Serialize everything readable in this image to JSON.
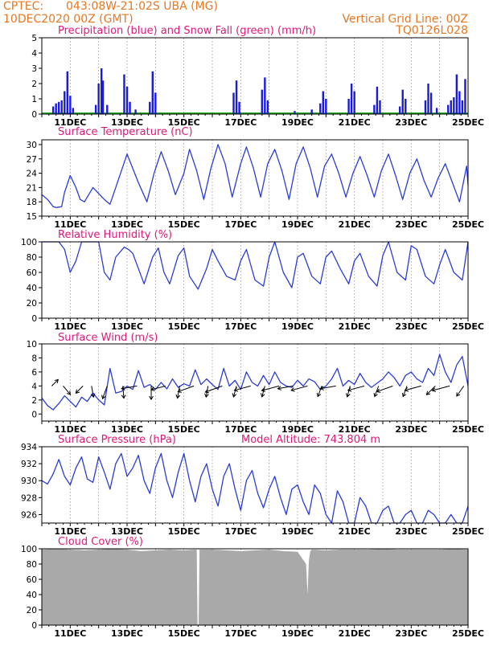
{
  "header": {
    "source": "CPTEC:",
    "location": "043:08W-21:02S  UBA (MG)",
    "datetime": "10DEC2020 00Z (GMT)",
    "grid_note": "Vertical Grid Line: 00Z",
    "model_code": "TQ0126L028"
  },
  "x_ticks": [
    "11DEC",
    "13DEC",
    "15DEC",
    "17DEC",
    "19DEC",
    "21DEC",
    "23DEC",
    "25DEC"
  ],
  "colors": {
    "precip": "#1a1adb",
    "snow": "#22aa22",
    "line": "#2b3cd6",
    "cloud": "#a9a9a9",
    "title": "#e0187a",
    "header": "#e87722"
  },
  "chart_data": [
    {
      "type": "bar",
      "title": "Precipitation (blue) and Snow Fall (green) (mm/h)",
      "ylim": [
        0,
        5
      ],
      "yticks": [
        "0",
        "1",
        "2",
        "3",
        "4",
        "5"
      ],
      "xlim_days": [
        10,
        25
      ],
      "series": [
        {
          "values": [
            [
              10.4,
              0.5
            ],
            [
              10.5,
              0.7
            ],
            [
              10.6,
              0.8
            ],
            [
              10.7,
              0.9
            ],
            [
              10.8,
              1.5
            ],
            [
              10.9,
              2.8
            ],
            [
              11.0,
              1.2
            ],
            [
              11.1,
              0.4
            ],
            [
              11.9,
              0.6
            ],
            [
              12.0,
              2.0
            ],
            [
              12.1,
              3.0
            ],
            [
              12.15,
              2.2
            ],
            [
              12.3,
              0.6
            ],
            [
              12.9,
              2.6
            ],
            [
              13.0,
              1.8
            ],
            [
              13.1,
              0.8
            ],
            [
              13.3,
              0.3
            ],
            [
              13.8,
              0.8
            ],
            [
              13.9,
              2.8
            ],
            [
              14.0,
              1.4
            ],
            [
              16.75,
              1.4
            ],
            [
              16.85,
              2.2
            ],
            [
              16.95,
              0.8
            ],
            [
              17.75,
              1.6
            ],
            [
              17.85,
              2.4
            ],
            [
              17.95,
              0.9
            ],
            [
              18.9,
              0.2
            ],
            [
              19.5,
              0.3
            ],
            [
              19.8,
              0.7
            ],
            [
              19.9,
              1.5
            ],
            [
              20.0,
              1.0
            ],
            [
              20.8,
              1.0
            ],
            [
              20.9,
              2.0
            ],
            [
              21.0,
              1.5
            ],
            [
              21.7,
              0.6
            ],
            [
              21.8,
              1.8
            ],
            [
              21.9,
              0.9
            ],
            [
              22.6,
              0.5
            ],
            [
              22.7,
              1.6
            ],
            [
              22.8,
              1.0
            ],
            [
              23.5,
              0.9
            ],
            [
              23.6,
              2.0
            ],
            [
              23.7,
              1.4
            ],
            [
              23.9,
              0.4
            ],
            [
              24.3,
              0.6
            ],
            [
              24.4,
              0.9
            ],
            [
              24.5,
              1.1
            ],
            [
              24.6,
              2.6
            ],
            [
              24.7,
              1.5
            ],
            [
              24.8,
              0.9
            ],
            [
              24.9,
              2.3
            ]
          ]
        }
      ]
    },
    {
      "type": "line",
      "title": "Surface Temperature (nC)",
      "ylim": [
        15,
        31
      ],
      "yticks": [
        "15",
        "18",
        "21",
        "24",
        "27",
        "30"
      ],
      "x": [
        10.0,
        10.2,
        10.4,
        10.5,
        10.7,
        10.8,
        11.0,
        11.2,
        11.35,
        11.5,
        11.8,
        12.2,
        12.4,
        12.6,
        13.0,
        13.2,
        13.4,
        13.7,
        13.95,
        14.2,
        14.45,
        14.7,
        15.0,
        15.2,
        15.45,
        15.7,
        15.95,
        16.2,
        16.45,
        16.7,
        17.0,
        17.2,
        17.45,
        17.7,
        17.95,
        18.2,
        18.45,
        18.7,
        18.95,
        19.2,
        19.45,
        19.7,
        19.95,
        20.2,
        20.45,
        20.7,
        20.95,
        21.2,
        21.45,
        21.7,
        21.95,
        22.2,
        22.45,
        22.7,
        22.95,
        23.2,
        23.45,
        23.7,
        23.95,
        24.2,
        24.45,
        24.7,
        24.95,
        25.0
      ],
      "values": [
        19.5,
        18.5,
        17.0,
        16.8,
        17.0,
        20.0,
        23.5,
        21.0,
        18.5,
        18.0,
        21.0,
        18.5,
        17.5,
        21.0,
        28.0,
        25.0,
        22.0,
        18.0,
        24.0,
        28.5,
        24.5,
        19.5,
        24.0,
        29.0,
        24.5,
        18.5,
        25.0,
        30.0,
        26.0,
        19.0,
        26.0,
        29.5,
        25.0,
        19.0,
        26.0,
        29.0,
        24.5,
        18.5,
        26.0,
        29.5,
        25.0,
        19.0,
        25.5,
        28.0,
        24.0,
        19.0,
        24.0,
        27.5,
        23.5,
        19.0,
        24.5,
        28.0,
        23.5,
        18.5,
        24.0,
        27.0,
        22.5,
        19.0,
        23.0,
        26.0,
        22.0,
        18.0,
        25.5,
        21.5
      ]
    },
    {
      "type": "line",
      "title": "Relative Humidity (%)",
      "ylim": [
        0,
        100
      ],
      "yticks": [
        "0",
        "20",
        "40",
        "60",
        "80",
        "100"
      ],
      "x": [
        10.0,
        10.2,
        10.4,
        10.6,
        10.8,
        11.0,
        11.2,
        11.4,
        11.6,
        11.8,
        12.0,
        12.2,
        12.4,
        12.6,
        12.9,
        13.05,
        13.2,
        13.4,
        13.6,
        13.9,
        14.1,
        14.3,
        14.5,
        14.8,
        15.0,
        15.2,
        15.5,
        15.8,
        16.0,
        16.2,
        16.5,
        16.8,
        17.0,
        17.2,
        17.5,
        17.8,
        18.0,
        18.2,
        18.5,
        18.8,
        19.0,
        19.2,
        19.5,
        19.8,
        20.0,
        20.2,
        20.5,
        20.8,
        21.0,
        21.2,
        21.5,
        21.8,
        22.0,
        22.2,
        22.5,
        22.8,
        23.0,
        23.2,
        23.5,
        23.8,
        24.0,
        24.2,
        24.5,
        24.8,
        25.0
      ],
      "values": [
        100,
        100,
        100,
        100,
        90,
        60,
        75,
        100,
        100,
        100,
        100,
        60,
        50,
        80,
        93,
        90,
        85,
        65,
        45,
        80,
        92,
        60,
        45,
        82,
        92,
        55,
        38,
        65,
        90,
        75,
        55,
        50,
        75,
        90,
        50,
        42,
        80,
        100,
        60,
        40,
        80,
        85,
        55,
        45,
        80,
        88,
        65,
        45,
        75,
        85,
        55,
        42,
        82,
        100,
        60,
        50,
        95,
        90,
        55,
        45,
        70,
        90,
        60,
        50,
        100
      ]
    },
    {
      "type": "line",
      "title": "Surface Wind (m/s)",
      "ylim": [
        -1,
        10
      ],
      "yticks": [
        "0",
        "2",
        "4",
        "6",
        "8",
        "10"
      ],
      "x": [
        10.0,
        10.2,
        10.4,
        10.6,
        10.8,
        11.0,
        11.2,
        11.4,
        11.6,
        11.8,
        12.0,
        12.2,
        12.4,
        12.6,
        12.8,
        13.0,
        13.2,
        13.4,
        13.6,
        13.8,
        14.0,
        14.2,
        14.4,
        14.6,
        14.8,
        15.0,
        15.2,
        15.4,
        15.6,
        15.8,
        16.0,
        16.2,
        16.4,
        16.6,
        16.8,
        17.0,
        17.2,
        17.4,
        17.6,
        17.8,
        18.0,
        18.2,
        18.4,
        18.6,
        18.8,
        19.0,
        19.2,
        19.4,
        19.6,
        19.8,
        20.0,
        20.2,
        20.4,
        20.6,
        20.8,
        21.0,
        21.2,
        21.4,
        21.6,
        21.8,
        22.0,
        22.2,
        22.4,
        22.6,
        22.8,
        23.0,
        23.2,
        23.4,
        23.6,
        23.8,
        24.0,
        24.2,
        24.4,
        24.6,
        24.8,
        25.0
      ],
      "values": [
        2.3,
        1.2,
        0.6,
        1.5,
        2.6,
        1.8,
        1.0,
        2.4,
        1.8,
        3.0,
        2.0,
        1.3,
        6.5,
        3.0,
        3.2,
        4.0,
        3.5,
        6.2,
        3.8,
        4.2,
        3.5,
        4.5,
        3.6,
        5.0,
        3.8,
        4.3,
        4.0,
        6.3,
        4.2,
        5.0,
        4.2,
        3.5,
        6.5,
        4.0,
        4.8,
        3.5,
        6.0,
        4.5,
        4.0,
        5.5,
        4.2,
        6.0,
        4.5,
        4.0,
        3.8,
        4.8,
        4.0,
        5.0,
        4.6,
        3.5,
        4.0,
        5.0,
        6.5,
        4.0,
        4.8,
        4.2,
        5.8,
        4.5,
        3.8,
        4.4,
        5.0,
        6.0,
        5.2,
        4.0,
        5.5,
        6.0,
        5.0,
        4.5,
        6.5,
        5.5,
        8.5,
        6.0,
        4.5,
        7.0,
        8.2,
        4.0
      ]
    },
    {
      "type": "line",
      "title": "Surface Pressure (hPa)",
      "subtitle": "Model Altitude: 743.804 m",
      "ylim": [
        925,
        934
      ],
      "yticks": [
        "926",
        "928",
        "930",
        "932",
        "934"
      ],
      "x": [
        10.0,
        10.2,
        10.4,
        10.6,
        10.8,
        11.0,
        11.2,
        11.4,
        11.6,
        11.8,
        12.0,
        12.2,
        12.4,
        12.6,
        12.8,
        13.0,
        13.2,
        13.4,
        13.6,
        13.8,
        14.0,
        14.2,
        14.4,
        14.6,
        14.8,
        15.0,
        15.2,
        15.4,
        15.6,
        15.8,
        16.0,
        16.2,
        16.4,
        16.6,
        16.8,
        17.0,
        17.2,
        17.4,
        17.6,
        17.8,
        18.0,
        18.2,
        18.4,
        18.6,
        18.8,
        19.0,
        19.2,
        19.4,
        19.6,
        19.8,
        20.0,
        20.2,
        20.4,
        20.6,
        20.8,
        21.0,
        21.2,
        21.4,
        21.6,
        21.8,
        22.0,
        22.2,
        22.4,
        22.6,
        22.8,
        23.0,
        23.2,
        23.4,
        23.6,
        23.8,
        24.0,
        24.2,
        24.4,
        24.6,
        24.8,
        25.0
      ],
      "values": [
        930.0,
        929.6,
        930.8,
        932.5,
        930.5,
        929.5,
        931.5,
        932.8,
        930.2,
        929.8,
        932.8,
        931.0,
        929.0,
        932.0,
        933.2,
        930.5,
        931.5,
        933.0,
        930.0,
        928.5,
        931.5,
        933.2,
        930.0,
        928.0,
        931.0,
        933.2,
        930.0,
        927.5,
        930.5,
        932.0,
        929.0,
        927.0,
        930.5,
        932.0,
        929.0,
        926.5,
        930.0,
        931.2,
        928.5,
        926.8,
        929.0,
        930.5,
        928.0,
        926.0,
        929.0,
        929.5,
        927.5,
        926.0,
        929.5,
        928.5,
        926.0,
        925.0,
        928.8,
        927.5,
        925.0,
        924.5,
        928.0,
        927.0,
        925.0,
        924.5,
        926.5,
        927.0,
        925.0,
        924.0,
        926.0,
        926.5,
        924.5,
        924.0,
        926.5,
        926.0,
        924.0,
        924.5,
        926.0,
        925.0,
        924.0,
        927.0
      ]
    },
    {
      "type": "area",
      "title": "Cloud Cover (%)",
      "ylim": [
        0,
        100
      ],
      "yticks": [
        "0",
        "20",
        "40",
        "60",
        "80",
        "100"
      ],
      "x": [
        10.0,
        10.5,
        11.0,
        11.5,
        12.0,
        12.5,
        13.0,
        13.5,
        14.0,
        14.5,
        15.0,
        15.45,
        15.48,
        15.52,
        15.55,
        16.0,
        16.5,
        17.0,
        17.5,
        18.0,
        18.5,
        19.0,
        19.3,
        19.35,
        19.4,
        19.45,
        19.5,
        20.0,
        20.5,
        21.0,
        21.5,
        22.0,
        22.5,
        23.0,
        23.5,
        24.0,
        24.5,
        25.0
      ],
      "values": [
        99,
        100,
        99,
        98,
        99,
        100,
        99,
        97,
        98,
        99,
        98,
        99,
        0,
        0,
        99,
        99,
        98,
        97,
        98,
        99,
        97,
        96,
        80,
        40,
        85,
        97,
        99,
        98,
        99,
        99,
        99,
        100,
        99,
        99,
        99,
        99,
        100,
        99
      ]
    }
  ],
  "wind_arrows": [
    {
      "day": 10.35,
      "dir_deg": 45,
      "len": 0.8
    },
    {
      "day": 10.75,
      "dir_deg": 310,
      "len": 1.0
    },
    {
      "day": 11.45,
      "dir_deg": 225,
      "len": 0.9
    },
    {
      "day": 11.75,
      "dir_deg": 280,
      "len": 1.0
    },
    {
      "day": 12.3,
      "dir_deg": 250,
      "len": 1.2
    },
    {
      "day": 12.85,
      "dir_deg": 275,
      "len": 1.1
    },
    {
      "day": 13.35,
      "dir_deg": 190,
      "len": 1.4
    },
    {
      "day": 13.85,
      "dir_deg": 270,
      "len": 1.2
    },
    {
      "day": 14.35,
      "dir_deg": 195,
      "len": 1.3
    },
    {
      "day": 14.85,
      "dir_deg": 260,
      "len": 1.1
    },
    {
      "day": 15.35,
      "dir_deg": 200,
      "len": 1.5
    },
    {
      "day": 15.85,
      "dir_deg": 260,
      "len": 1.0
    },
    {
      "day": 16.35,
      "dir_deg": 200,
      "len": 1.6
    },
    {
      "day": 16.85,
      "dir_deg": 255,
      "len": 1.0
    },
    {
      "day": 17.35,
      "dir_deg": 195,
      "len": 1.5
    },
    {
      "day": 17.85,
      "dir_deg": 255,
      "len": 1.0
    },
    {
      "day": 18.35,
      "dir_deg": 195,
      "len": 1.6
    },
    {
      "day": 18.85,
      "dir_deg": 190,
      "len": 1.4
    },
    {
      "day": 19.35,
      "dir_deg": 195,
      "len": 1.5
    },
    {
      "day": 19.85,
      "dir_deg": 250,
      "len": 1.0
    },
    {
      "day": 20.35,
      "dir_deg": 190,
      "len": 1.4
    },
    {
      "day": 20.85,
      "dir_deg": 255,
      "len": 1.0
    },
    {
      "day": 21.35,
      "dir_deg": 195,
      "len": 1.5
    },
    {
      "day": 21.85,
      "dir_deg": 250,
      "len": 1.0
    },
    {
      "day": 22.35,
      "dir_deg": 200,
      "len": 1.5
    },
    {
      "day": 22.85,
      "dir_deg": 250,
      "len": 1.0
    },
    {
      "day": 23.35,
      "dir_deg": 195,
      "len": 1.5
    },
    {
      "day": 23.85,
      "dir_deg": 225,
      "len": 1.1
    },
    {
      "day": 24.35,
      "dir_deg": 195,
      "len": 1.6
    },
    {
      "day": 24.85,
      "dir_deg": 235,
      "len": 1.1
    }
  ]
}
